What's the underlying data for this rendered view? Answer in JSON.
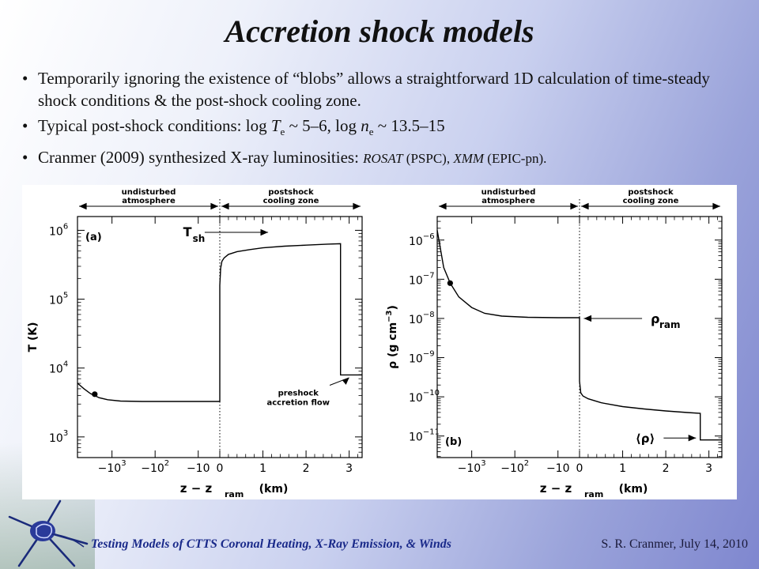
{
  "slide": {
    "title": "Accretion shock models",
    "bullets": [
      {
        "parts": [
          {
            "text": "Temporarily ignoring the existence of “blobs” allows a straightforward 1D calculation of time-steady shock conditions & the post-shock cooling zone."
          }
        ]
      },
      {
        "parts": [
          {
            "text": "Typical post-shock conditions:  log "
          },
          {
            "text": "T",
            "style": "it"
          },
          {
            "text": "e",
            "style": "sub"
          },
          {
            "text": " ~ 5–6,  log "
          },
          {
            "text": "n",
            "style": "it"
          },
          {
            "text": "e",
            "style": "sub"
          },
          {
            "text": " ~ 13.5–15"
          }
        ]
      },
      {
        "parts": [
          {
            "text": "Cranmer (2009) synthesized X-ray luminosities: "
          },
          {
            "text": " ROSAT",
            "style": "it sm"
          },
          {
            "text": " (PSPC),  ",
            "style": "sm"
          },
          {
            "text": "XMM",
            "style": "it sm"
          },
          {
            "text": " (EPIC-pn).",
            "style": "sm"
          }
        ]
      }
    ],
    "footer_left": "Testing Models of CTTS Coronal Heating, X-Ray Emission, & Winds",
    "footer_right": "S. R. Cranmer, July 14, 2010"
  },
  "chart_data": [
    {
      "type": "line",
      "panel_label": "(a)",
      "xlabel": "z − z",
      "xlabel_sub": "ram",
      "xunit": "(km)",
      "ylabel": "T   (K)",
      "y_scale": "log",
      "ylim_log10": [
        2.7,
        6.2
      ],
      "xticks": [
        {
          "pos": -2.5,
          "label": "−10",
          "sup": "3"
        },
        {
          "pos": -1.5,
          "label": "−10",
          "sup": "2"
        },
        {
          "pos": -0.5,
          "label": "−10",
          "sup": ""
        },
        {
          "pos": 0,
          "label": "0",
          "sup": ""
        },
        {
          "pos": 1,
          "label": "1",
          "sup": ""
        },
        {
          "pos": 2,
          "label": "2",
          "sup": ""
        },
        {
          "pos": 3,
          "label": "3",
          "sup": ""
        }
      ],
      "yticks": [
        {
          "value": 3,
          "label": "10",
          "sup": "3"
        },
        {
          "value": 4,
          "label": "10",
          "sup": "4"
        },
        {
          "value": 5,
          "label": "10",
          "sup": "5"
        },
        {
          "value": 6,
          "label": "10",
          "sup": "6"
        }
      ],
      "region_labels": [
        {
          "side": "left",
          "lines": [
            "undisturbed",
            "atmosphere"
          ]
        },
        {
          "side": "right",
          "lines": [
            "postshock",
            "cooling zone"
          ]
        }
      ],
      "annotations": [
        {
          "name": "tsh-label",
          "text": "T",
          "sub": "sh"
        },
        {
          "name": "preshock-label",
          "lines": [
            "preshock",
            "accretion flow"
          ]
        }
      ],
      "marker": {
        "x": -2.9,
        "log10y": 3.62
      },
      "curve": [
        [
          -3.3,
          3.78
        ],
        [
          -3.15,
          3.7
        ],
        [
          -3.0,
          3.63
        ],
        [
          -2.8,
          3.57
        ],
        [
          -2.6,
          3.54
        ],
        [
          -2.3,
          3.52
        ],
        [
          -1.8,
          3.515
        ],
        [
          -1.0,
          3.515
        ],
        [
          -0.3,
          3.515
        ],
        [
          0.0,
          3.515
        ],
        [
          0.0,
          5.2
        ],
        [
          0.02,
          5.45
        ],
        [
          0.05,
          5.55
        ],
        [
          0.1,
          5.6
        ],
        [
          0.2,
          5.65
        ],
        [
          0.4,
          5.69
        ],
        [
          0.7,
          5.72
        ],
        [
          1.0,
          5.745
        ],
        [
          1.5,
          5.77
        ],
        [
          2.0,
          5.785
        ],
        [
          2.5,
          5.8
        ],
        [
          2.8,
          5.805
        ],
        [
          2.8,
          3.9
        ],
        [
          3.3,
          3.9
        ]
      ]
    },
    {
      "type": "line",
      "panel_label": "(b)",
      "xlabel": "z − z",
      "xlabel_sub": "ram",
      "xunit": "(km)",
      "ylabel": "ρ   (g cm",
      "ylabel_sup": "−3",
      "ylabel_end": ")",
      "y_scale": "log",
      "ylim_log10": [
        -11.55,
        -5.4
      ],
      "xticks": [
        {
          "pos": -2.5,
          "label": "−10",
          "sup": "3"
        },
        {
          "pos": -1.5,
          "label": "−10",
          "sup": "2"
        },
        {
          "pos": -0.5,
          "label": "−10",
          "sup": ""
        },
        {
          "pos": 0,
          "label": "0",
          "sup": ""
        },
        {
          "pos": 1,
          "label": "1",
          "sup": ""
        },
        {
          "pos": 2,
          "label": "2",
          "sup": ""
        },
        {
          "pos": 3,
          "label": "3",
          "sup": ""
        }
      ],
      "yticks": [
        {
          "value": -6,
          "label": "10",
          "sup": "−6"
        },
        {
          "value": -7,
          "label": "10",
          "sup": "−7"
        },
        {
          "value": -8,
          "label": "10",
          "sup": "−8"
        },
        {
          "value": -9,
          "label": "10",
          "sup": "−9"
        },
        {
          "value": -10,
          "label": "10",
          "sup": "−10"
        },
        {
          "value": -11,
          "label": "10",
          "sup": "−11"
        }
      ],
      "region_labels": [
        {
          "side": "left",
          "lines": [
            "undisturbed",
            "atmosphere"
          ]
        },
        {
          "side": "right",
          "lines": [
            "postshock",
            "cooling zone"
          ]
        }
      ],
      "annotations": [
        {
          "name": "rho-ram-label",
          "text": "ρ",
          "sub": "ram"
        },
        {
          "name": "rho-mean-label",
          "text": "⟨ρ⟩"
        }
      ],
      "marker": {
        "x": -3.0,
        "log10y": -7.1
      },
      "curve": [
        [
          -3.3,
          -5.75
        ],
        [
          -3.15,
          -6.7
        ],
        [
          -3.0,
          -7.1
        ],
        [
          -2.8,
          -7.45
        ],
        [
          -2.5,
          -7.72
        ],
        [
          -2.2,
          -7.87
        ],
        [
          -1.8,
          -7.94
        ],
        [
          -1.2,
          -7.97
        ],
        [
          -0.5,
          -7.98
        ],
        [
          0.0,
          -7.98
        ],
        [
          0.0,
          -9.6
        ],
        [
          0.03,
          -9.9
        ],
        [
          0.08,
          -9.98
        ],
        [
          0.2,
          -10.05
        ],
        [
          0.5,
          -10.15
        ],
        [
          1.0,
          -10.25
        ],
        [
          1.5,
          -10.31
        ],
        [
          2.0,
          -10.36
        ],
        [
          2.5,
          -10.4
        ],
        [
          2.8,
          -10.42
        ],
        [
          2.8,
          -11.1
        ],
        [
          3.3,
          -11.1
        ]
      ]
    }
  ]
}
